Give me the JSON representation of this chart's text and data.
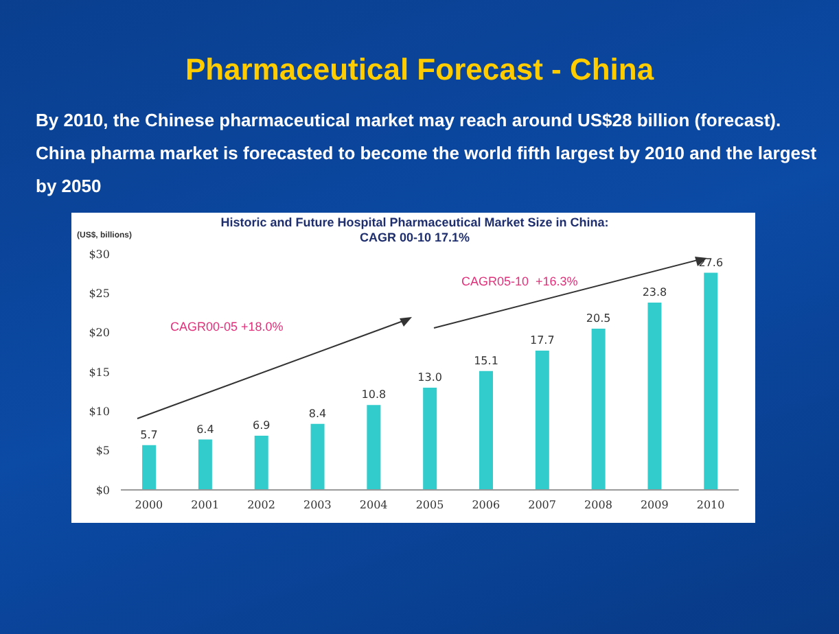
{
  "chart_data": {
    "type": "bar",
    "title": "Pharmaceutical Forecast - China",
    "subtitle": "By 2010, the Chinese pharmaceutical market may reach around US$28 billion (forecast). China pharma market is forecasted to become the world fifth largest by 2010 and the largest by  2050",
    "ylabel": "(US$, billions)",
    "annotations": [
      "Historic and Future Hospital Pharmaceutical Market Size in China: CAGR 00-10 17.1%",
      "CAGR00-05 +18.0%",
      "CAGR05-10  +16.3%"
    ],
    "categories": [
      "2000",
      "2001",
      "2002",
      "2003",
      "2004",
      "2005",
      "2006",
      "2007",
      "2008",
      "2009",
      "2010"
    ],
    "values": [
      5.7,
      6.4,
      6.9,
      8.4,
      10.8,
      13.0,
      15.1,
      17.7,
      20.5,
      23.8,
      27.6
    ],
    "value_labels": [
      "5.7",
      "6.4",
      "6.9",
      "8.4",
      "10.8",
      "13.0",
      "15.1",
      "17.7",
      "20.5",
      "23.8",
      "27.6"
    ],
    "color": "#33cccc",
    "ylim": [
      0,
      30
    ],
    "yticks": [
      {
        "value": 0,
        "label": "$0"
      },
      {
        "value": 5,
        "label": "$5"
      },
      {
        "value": 10,
        "label": "$10"
      },
      {
        "value": 15,
        "label": "$15"
      },
      {
        "value": 20,
        "label": "$20"
      },
      {
        "value": 25,
        "label": "$25"
      },
      {
        "value": 30,
        "label": "$30"
      }
    ],
    "grid": false,
    "legend": false
  }
}
